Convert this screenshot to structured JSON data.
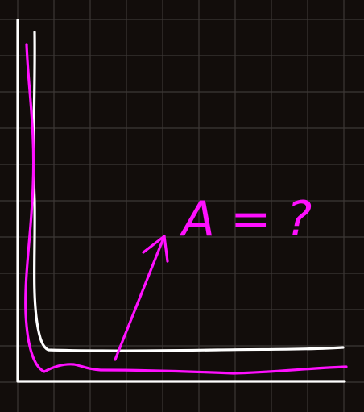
{
  "annotation": {
    "label": "A = ?"
  },
  "colors": {
    "background": "#120d0b",
    "grid": "#3c3836",
    "chalk_white": "#ffffff",
    "magenta": "#ff10ff"
  },
  "icons": {
    "arrow": "arrow-icon"
  }
}
